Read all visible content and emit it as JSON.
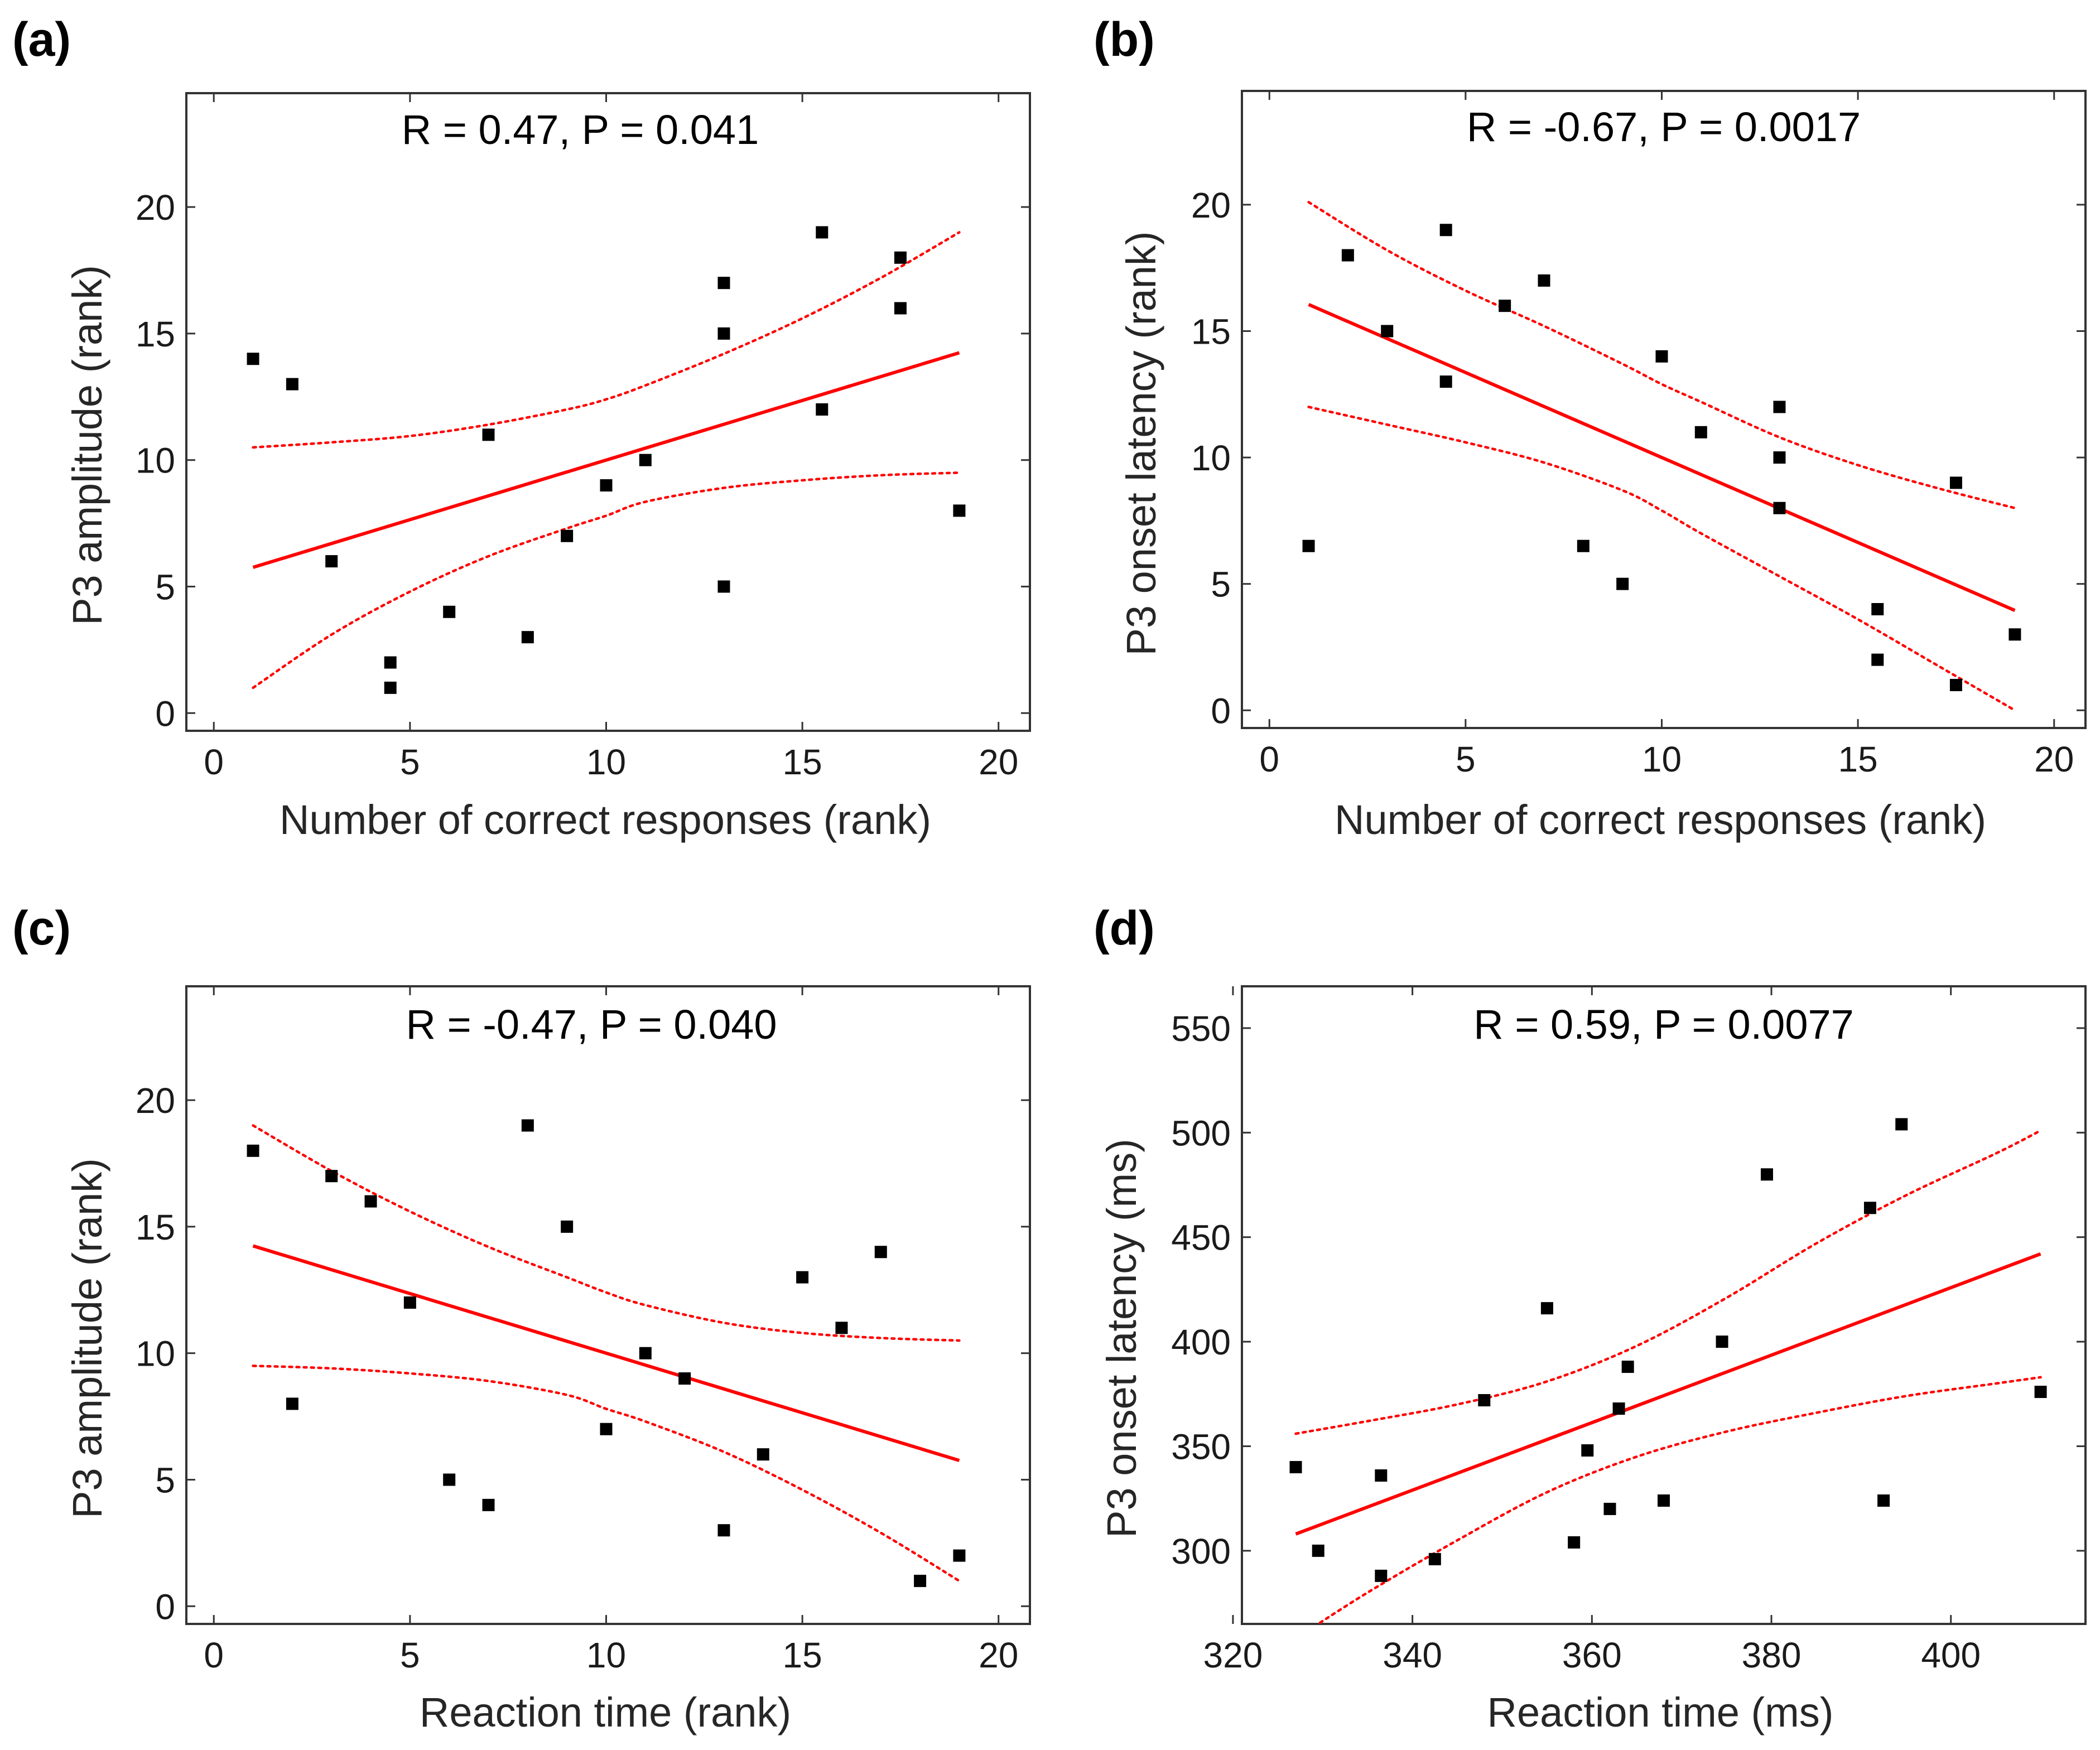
{
  "chart_data": [
    {
      "id": "a",
      "panel_label": "(a)",
      "type": "scatter",
      "annotation": "R = 0.47, P = 0.041",
      "xlabel": "Number of correct responses (rank)",
      "ylabel": "P3 amplitude (rank)",
      "xlim": [
        -0.7,
        20.8
      ],
      "ylim": [
        -0.7,
        24.5
      ],
      "xticks": [
        0,
        5,
        10,
        15,
        20
      ],
      "yticks": [
        0,
        5,
        10,
        15,
        20
      ],
      "fit": {
        "x": [
          1,
          19
        ],
        "y": [
          5.76,
          14.24
        ]
      },
      "ci_upper": {
        "x": [
          1,
          3,
          5,
          7,
          9,
          10,
          11,
          13,
          15,
          17,
          19
        ],
        "y": [
          10.5,
          10.7,
          10.95,
          11.4,
          12.0,
          12.4,
          12.95,
          14.2,
          15.6,
          17.2,
          19.0
        ]
      },
      "ci_lower": {
        "x": [
          1,
          3,
          5,
          7,
          9,
          10,
          11,
          13,
          15,
          17,
          19
        ],
        "y": [
          1.0,
          3.1,
          4.8,
          6.2,
          7.3,
          7.8,
          8.35,
          8.9,
          9.2,
          9.4,
          9.5
        ]
      },
      "points": [
        [
          1,
          14
        ],
        [
          2,
          13
        ],
        [
          3,
          6
        ],
        [
          4.5,
          2
        ],
        [
          4.5,
          1
        ],
        [
          6,
          4
        ],
        [
          7,
          11
        ],
        [
          8,
          3
        ],
        [
          9,
          7
        ],
        [
          10,
          9
        ],
        [
          11,
          10
        ],
        [
          13,
          17
        ],
        [
          13,
          15
        ],
        [
          13,
          5
        ],
        [
          15.5,
          19
        ],
        [
          15.5,
          12
        ],
        [
          17.5,
          18
        ],
        [
          17.5,
          16
        ],
        [
          19,
          8
        ]
      ]
    },
    {
      "id": "b",
      "panel_label": "(b)",
      "type": "scatter",
      "annotation": "R = -0.67, P = 0.0017",
      "xlabel": "Number of correct responses (rank)",
      "ylabel": "P3 onset latency (rank)",
      "xlim": [
        -0.7,
        20.8
      ],
      "ylim": [
        -0.7,
        24.5
      ],
      "xticks": [
        0,
        5,
        10,
        15,
        20
      ],
      "yticks": [
        0,
        5,
        10,
        15,
        20
      ],
      "fit": {
        "x": [
          1,
          19
        ],
        "y": [
          16.05,
          3.95
        ]
      },
      "ci_upper": {
        "x": [
          1,
          3,
          5,
          7,
          9,
          10,
          11,
          13,
          15,
          17,
          19
        ],
        "y": [
          20.1,
          18.2,
          16.6,
          15.2,
          13.7,
          12.9,
          12.2,
          10.8,
          9.7,
          8.8,
          8.0
        ]
      },
      "ci_lower": {
        "x": [
          1,
          3,
          5,
          7,
          9,
          10,
          11,
          13,
          15,
          17,
          19
        ],
        "y": [
          12.0,
          11.3,
          10.6,
          9.8,
          8.7,
          7.9,
          7.0,
          5.3,
          3.6,
          1.8,
          0.0
        ]
      },
      "points": [
        [
          1,
          6.5
        ],
        [
          2,
          18
        ],
        [
          3,
          15
        ],
        [
          4.5,
          19
        ],
        [
          4.5,
          13
        ],
        [
          6,
          16
        ],
        [
          7,
          17
        ],
        [
          8,
          6.5
        ],
        [
          9,
          5
        ],
        [
          10,
          14
        ],
        [
          11,
          11
        ],
        [
          13,
          12
        ],
        [
          13,
          10
        ],
        [
          13,
          8
        ],
        [
          15.5,
          4
        ],
        [
          15.5,
          2
        ],
        [
          17.5,
          9
        ],
        [
          17.5,
          1
        ],
        [
          19,
          3
        ]
      ]
    },
    {
      "id": "c",
      "panel_label": "(c)",
      "type": "scatter",
      "annotation": "R = -0.47, P = 0.040",
      "xlabel": "Reaction time (rank)",
      "ylabel": "P3 amplitude (rank)",
      "xlim": [
        -0.7,
        20.8
      ],
      "ylim": [
        -0.7,
        24.5
      ],
      "xticks": [
        0,
        5,
        10,
        15,
        20
      ],
      "yticks": [
        0,
        5,
        10,
        15,
        20
      ],
      "fit": {
        "x": [
          1,
          19
        ],
        "y": [
          14.24,
          5.76
        ]
      },
      "ci_upper": {
        "x": [
          1,
          3,
          5,
          7,
          9,
          10,
          11,
          13,
          15,
          17,
          19
        ],
        "y": [
          19.0,
          17.2,
          15.6,
          14.2,
          13.0,
          12.4,
          11.9,
          11.2,
          10.8,
          10.6,
          10.5
        ]
      },
      "ci_lower": {
        "x": [
          1,
          3,
          5,
          7,
          9,
          10,
          11,
          13,
          15,
          17,
          19
        ],
        "y": [
          9.5,
          9.4,
          9.2,
          8.9,
          8.35,
          7.8,
          7.3,
          6.1,
          4.6,
          2.9,
          1.0
        ]
      },
      "points": [
        [
          1,
          18
        ],
        [
          2,
          8
        ],
        [
          3,
          17
        ],
        [
          4,
          16
        ],
        [
          5,
          12
        ],
        [
          6,
          5
        ],
        [
          7,
          4
        ],
        [
          8,
          19
        ],
        [
          9,
          15
        ],
        [
          10,
          7
        ],
        [
          11,
          10
        ],
        [
          12,
          9
        ],
        [
          13,
          3
        ],
        [
          14,
          6
        ],
        [
          15,
          13
        ],
        [
          16,
          11
        ],
        [
          17,
          14
        ],
        [
          18,
          1
        ],
        [
          19,
          2
        ]
      ]
    },
    {
      "id": "d",
      "panel_label": "(d)",
      "type": "scatter",
      "annotation": "R = 0.59, P = 0.0077",
      "xlabel": "Reaction time (ms)",
      "ylabel": "P3 onset latency (ms)",
      "xlim": [
        321,
        415
      ],
      "ylim": [
        265,
        570
      ],
      "xticks": [
        320,
        340,
        360,
        380,
        400
      ],
      "yticks": [
        300,
        350,
        400,
        450,
        500,
        550
      ],
      "fit": {
        "x": [
          327,
          410
        ],
        "y": [
          308,
          442
        ]
      },
      "ci_upper": {
        "x": [
          327,
          335,
          345,
          355,
          365,
          375,
          385,
          395,
          405,
          410
        ],
        "y": [
          356,
          362,
          370,
          381,
          398,
          421,
          447,
          470,
          490,
          501
        ]
      },
      "ci_lower": {
        "x": [
          327,
          335,
          345,
          355,
          365,
          375,
          385,
          395,
          405,
          410
        ],
        "y": [
          258,
          280,
          305,
          328,
          345,
          357,
          366,
          374,
          380,
          383
        ]
      },
      "points": [
        [
          327,
          340
        ],
        [
          329.5,
          300
        ],
        [
          336.5,
          336
        ],
        [
          336.5,
          288
        ],
        [
          342.5,
          296
        ],
        [
          348,
          372
        ],
        [
          355,
          416
        ],
        [
          358,
          304
        ],
        [
          359.5,
          348
        ],
        [
          362,
          320
        ],
        [
          363,
          368
        ],
        [
          364,
          388
        ],
        [
          368,
          324
        ],
        [
          374.5,
          400
        ],
        [
          379.5,
          480
        ],
        [
          391,
          464
        ],
        [
          392.5,
          324
        ],
        [
          394.5,
          504
        ],
        [
          410,
          376
        ]
      ]
    }
  ]
}
